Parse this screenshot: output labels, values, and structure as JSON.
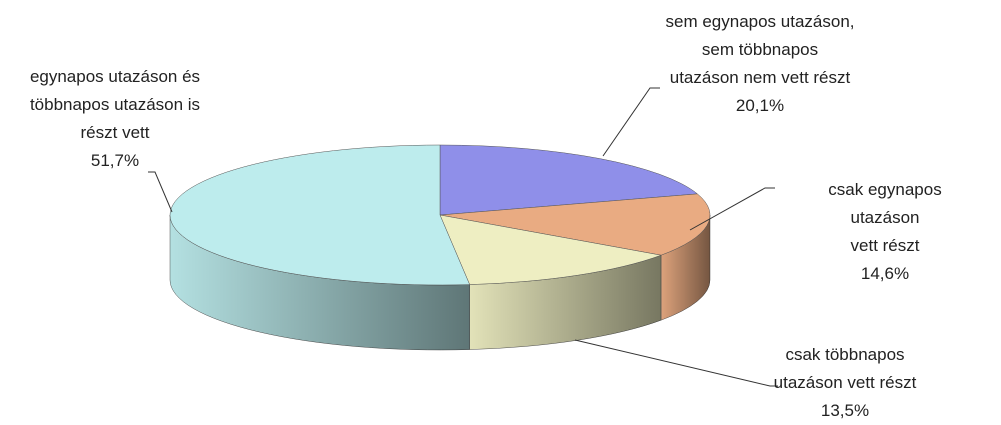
{
  "chart_data": {
    "type": "pie",
    "categories": [
      "sem egynapos utazáson,\nsem többnapos\nutazáson nem vett részt",
      "csak egynapos utazáson\nvett részt",
      "csak többnapos\nutazáson vett részt",
      "egynapos utazáson és\ntöbbnapos utazáson is\nrészt vett"
    ],
    "values": [
      20.1,
      14.6,
      13.5,
      51.7
    ],
    "value_labels": [
      "20,1%",
      "14,6%",
      "13,5%",
      "51,7%"
    ],
    "colors": [
      "#8f8fe9",
      "#e9ab82",
      "#eeeec2",
      "#bdeced"
    ]
  }
}
